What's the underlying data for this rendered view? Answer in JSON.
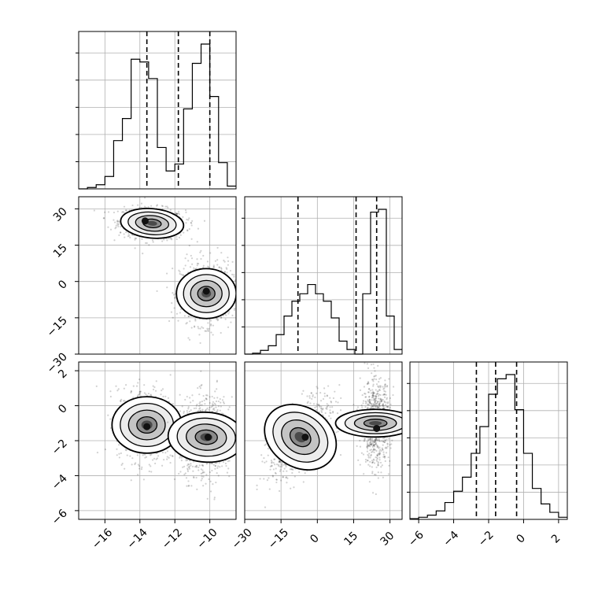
{
  "chart_data": {
    "type": "corner",
    "parameters": 3,
    "grid": true,
    "line_color": "#000000",
    "grid_color": "#b0b0b0",
    "points_color": "#000000",
    "quantile_style": "dashed",
    "axes": {
      "p0": {
        "range": [
          -17.5,
          -8.5
        ],
        "ticks": [
          -16,
          -14,
          -12,
          -10
        ],
        "tick_labels": [
          "−16",
          "−14",
          "−12",
          "−10"
        ]
      },
      "p1": {
        "range": [
          -30,
          35
        ],
        "ticks": [
          -30,
          -15,
          0,
          15,
          30
        ],
        "tick_labels": [
          "−30",
          "−15",
          "0",
          "15",
          "30"
        ]
      },
      "p2": {
        "range": [
          -6.5,
          2.5
        ],
        "ticks": [
          -6,
          -4,
          -2,
          0,
          2
        ],
        "tick_labels": [
          "−6",
          "−4",
          "−2",
          "0",
          "2"
        ]
      }
    },
    "histograms": [
      {
        "param": "p0",
        "bin_edges": [
          -17.5,
          -17.0,
          -16.5,
          -16.0,
          -15.5,
          -15.0,
          -14.5,
          -14.0,
          -13.5,
          -13.0,
          -12.5,
          -12.0,
          -11.5,
          -11.0,
          -10.5,
          -10.0,
          -9.5,
          -9.0,
          -8.5
        ],
        "counts": [
          0,
          10,
          30,
          90,
          350,
          510,
          940,
          920,
          800,
          300,
          130,
          180,
          580,
          910,
          1050,
          670,
          190,
          20
        ],
        "quantiles": [
          -13.6,
          -11.8,
          -10.0
        ]
      },
      {
        "param": "p1",
        "bin_edges": [
          -30,
          -26.75,
          -23.5,
          -20.25,
          -17,
          -13.75,
          -10.5,
          -7.25,
          -4,
          -0.75,
          2.5,
          5.75,
          9,
          12.25,
          15.5,
          18.75,
          22,
          25.25,
          28.5,
          31.75,
          35
        ],
        "counts": [
          0,
          10,
          40,
          90,
          210,
          410,
          570,
          650,
          750,
          650,
          570,
          390,
          140,
          50,
          0,
          650,
          1530,
          1560,
          410,
          50
        ],
        "quantiles": [
          -8,
          16,
          24.5
        ]
      },
      {
        "param": "p2",
        "bin_edges": [
          -6.5,
          -6.0,
          -5.5,
          -5.0,
          -4.5,
          -4.0,
          -3.5,
          -3.0,
          -2.5,
          -2.0,
          -1.5,
          -1.0,
          -0.5,
          0.0,
          0.5,
          1.0,
          1.5,
          2.0,
          2.5
        ],
        "counts": [
          5,
          15,
          30,
          60,
          120,
          200,
          300,
          470,
          660,
          890,
          1000,
          1030,
          780,
          470,
          220,
          110,
          50,
          15
        ],
        "quantiles": [
          -2.7,
          -1.6,
          -0.4
        ]
      }
    ],
    "scatter_2d": [
      {
        "x": "p0",
        "y": "p1",
        "clusters": [
          {
            "cx": -13.3,
            "cy": 24,
            "sx": 0.95,
            "sy": 3.2,
            "rho": -0.15,
            "n": 800
          },
          {
            "cx": -10.2,
            "cy": -5,
            "sx": 0.75,
            "sy": 6.5,
            "rho": 0.0,
            "n": 800
          }
        ],
        "density_peaks": [
          [
            -13.7,
            25
          ],
          [
            -10.2,
            -4
          ]
        ]
      },
      {
        "x": "p0",
        "y": "p2",
        "clusters": [
          {
            "cx": -13.6,
            "cy": -1.1,
            "sx": 0.85,
            "sy": 1.05,
            "rho": 0.0,
            "n": 800
          },
          {
            "cx": -10.2,
            "cy": -1.8,
            "sx": 0.75,
            "sy": 1.15,
            "rho": 0.05,
            "n": 800
          }
        ],
        "density_peaks": [
          [
            -13.6,
            -1.2
          ],
          [
            -10.1,
            -1.8
          ]
        ]
      },
      {
        "x": "p1",
        "y": "p2",
        "clusters": [
          {
            "cx": -7,
            "cy": -1.8,
            "sx": 6.5,
            "sy": 1.15,
            "rho": 0.6,
            "n": 800
          },
          {
            "cx": 24,
            "cy": -1.0,
            "sx": 3.0,
            "sy": 1.2,
            "rho": 0.0,
            "n": 800
          }
        ],
        "density_peaks": [
          [
            -5,
            -1.8
          ],
          [
            24.5,
            -1.3
          ]
        ]
      }
    ]
  }
}
